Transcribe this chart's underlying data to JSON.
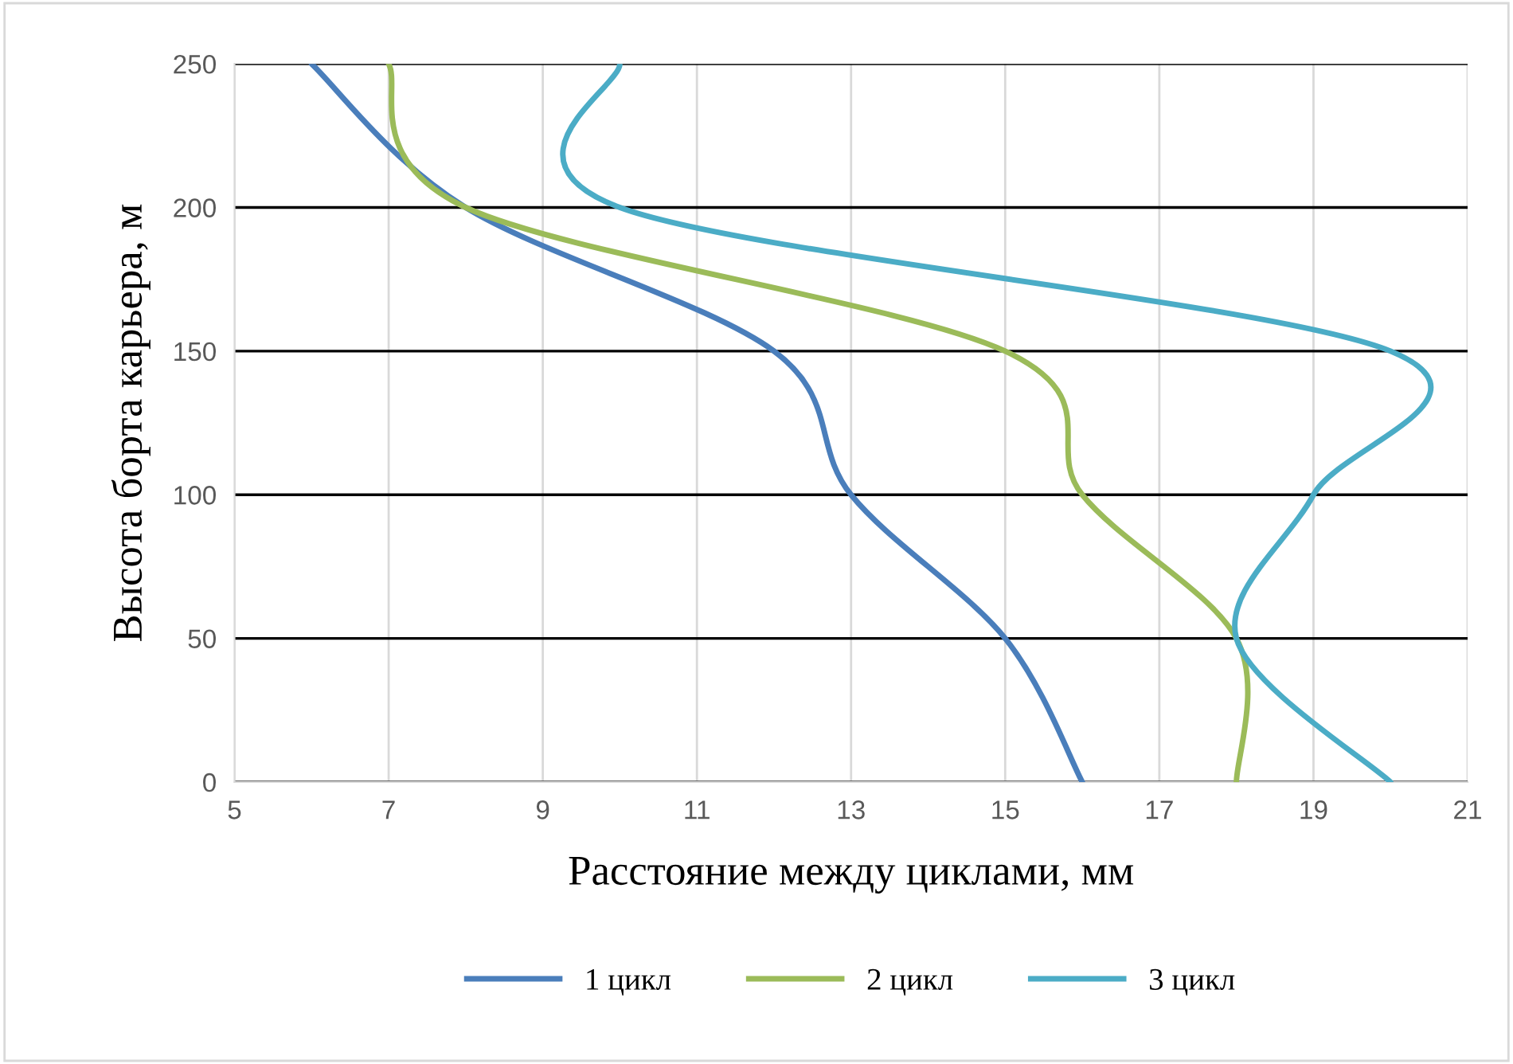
{
  "chart_data": {
    "type": "line",
    "xlabel": "Расстояние между циклами, мм",
    "ylabel": "Высота борта карьера, м",
    "series": [
      {
        "name": "1 цикл",
        "color": "#4a7ebb",
        "x": [
          16,
          15,
          13,
          12,
          8,
          6
        ],
        "values": [
          0,
          50,
          100,
          150,
          200,
          250
        ]
      },
      {
        "name": "2 цикл",
        "color": "#9bbb59",
        "x": [
          18,
          18,
          16,
          15,
          8,
          7
        ],
        "values": [
          0,
          50,
          100,
          150,
          200,
          250
        ]
      },
      {
        "name": "3 цикл",
        "color": "#4bacc6",
        "x": [
          20,
          18,
          19,
          20,
          10,
          10
        ],
        "values": [
          0,
          50,
          100,
          150,
          200,
          250
        ]
      }
    ],
    "xlim": [
      5,
      21
    ],
    "xticks": [
      5,
      7,
      9,
      11,
      13,
      15,
      17,
      19,
      21
    ],
    "ylim": [
      0,
      250
    ],
    "yticks": [
      0,
      50,
      100,
      150,
      200,
      250
    ],
    "grid": true,
    "legend": "bottom",
    "marker": "none",
    "line_style": "solid"
  }
}
